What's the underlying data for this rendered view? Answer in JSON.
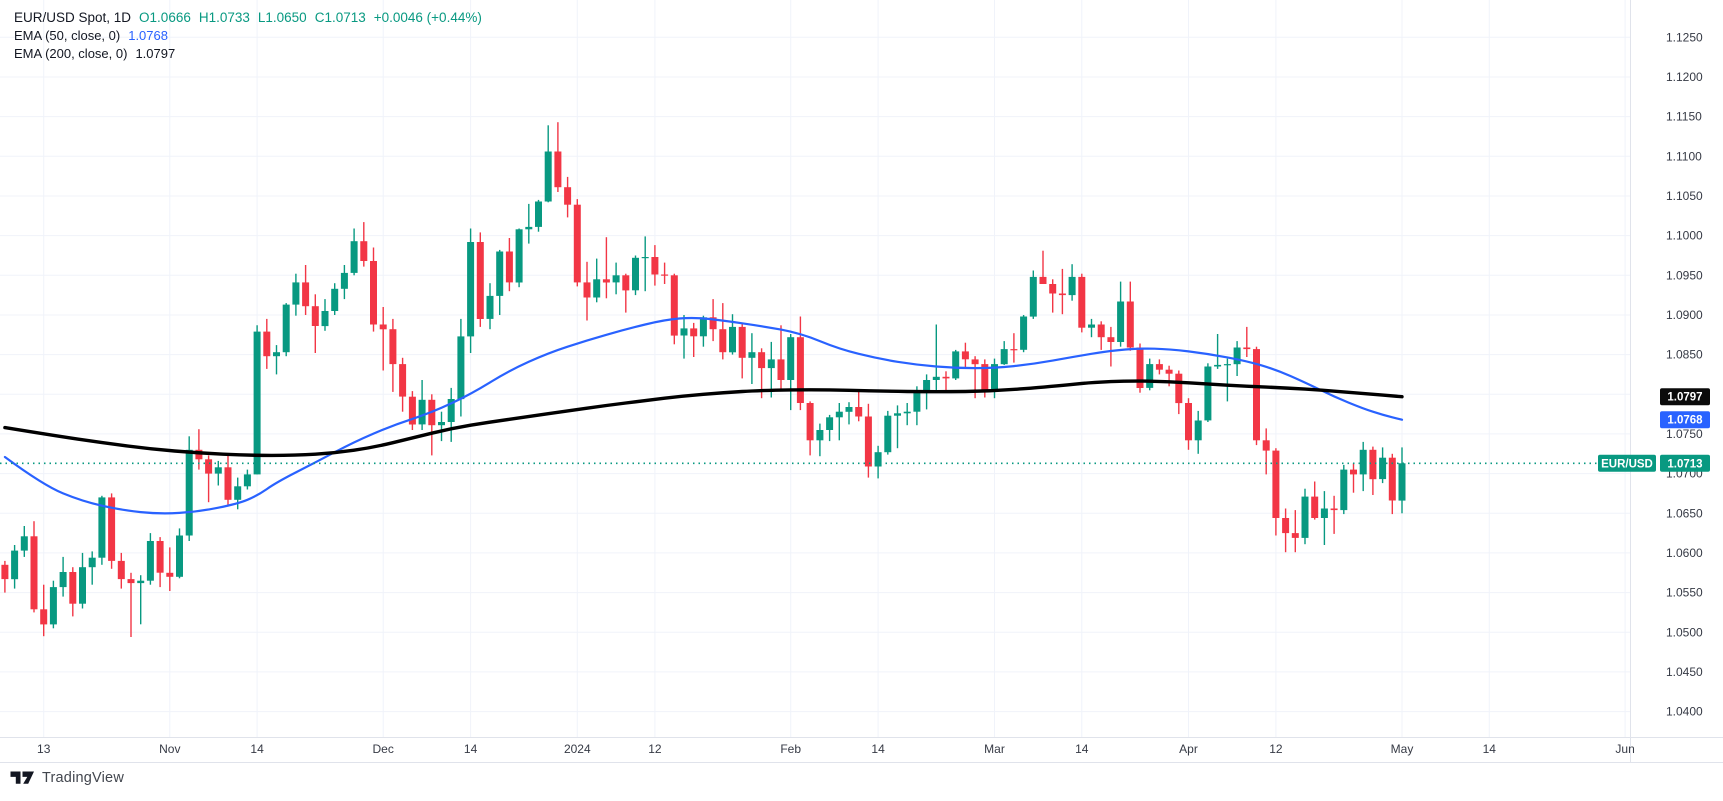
{
  "legend": {
    "symbol_title": "EUR/USD Spot, 1D",
    "ohlc": {
      "open": "O1.0666",
      "high": "H1.0733",
      "low": "L1.0650",
      "close": "C1.0713",
      "change": "+0.0046 (+0.44%)"
    },
    "ema50": {
      "label": "EMA (50, close, 0)",
      "value": "1.0768"
    },
    "ema200": {
      "label": "EMA (200, close, 0)",
      "value": "1.0797"
    }
  },
  "footer": {
    "brand": "TradingView"
  },
  "colors": {
    "up": "#089981",
    "down": "#F23645",
    "grid": "#F0F3FA",
    "border": "#E0E3EB",
    "axis_text": "#363A45",
    "ema50": "#2962FF",
    "ema200": "#000000",
    "last_line": "#089981",
    "badge_black": "#0B0B0B",
    "badge_blue": "#2962FF",
    "badge_green": "#089981",
    "badge_text": "#FFFFFF"
  },
  "chart_data": {
    "type": "candlestick",
    "symbol": "EUR/USD Spot",
    "interval": "1D",
    "ohlc_legend": {
      "open": 1.0666,
      "high": 1.0733,
      "low": 1.065,
      "close": 1.0713,
      "change": "+0.0046 (+0.44%)"
    },
    "y_axis": {
      "min": 1.0368,
      "max": 1.1297,
      "tick_min": 1.04,
      "tick_max": 1.125,
      "tick_step": 0.005,
      "hidden_labels": [
        "1.0800"
      ]
    },
    "x_axis": {
      "total_slots": 168,
      "ticks": [
        {
          "slot": 4,
          "label": "13"
        },
        {
          "slot": 17,
          "label": "Nov"
        },
        {
          "slot": 26,
          "label": "14"
        },
        {
          "slot": 39,
          "label": "Dec"
        },
        {
          "slot": 48,
          "label": "14"
        },
        {
          "slot": 59,
          "label": "2024"
        },
        {
          "slot": 67,
          "label": "12"
        },
        {
          "slot": 81,
          "label": "Feb"
        },
        {
          "slot": 90,
          "label": "14"
        },
        {
          "slot": 102,
          "label": "Mar"
        },
        {
          "slot": 111,
          "label": "14"
        },
        {
          "slot": 122,
          "label": "Apr"
        },
        {
          "slot": 131,
          "label": "12"
        },
        {
          "slot": 144,
          "label": "May"
        },
        {
          "slot": 153,
          "label": "14"
        },
        {
          "slot": 167,
          "label": "Jun"
        }
      ]
    },
    "candles": [
      [
        1.0585,
        1.059,
        1.055,
        1.0567
      ],
      [
        1.0567,
        1.061,
        1.0555,
        1.0603
      ],
      [
        1.0603,
        1.0634,
        1.0595,
        1.0621
      ],
      [
        1.0621,
        1.064,
        1.0525,
        1.0529
      ],
      [
        1.0529,
        1.056,
        1.0495,
        1.051
      ],
      [
        1.051,
        1.0565,
        1.0505,
        1.0557
      ],
      [
        1.0557,
        1.0595,
        1.0545,
        1.0576
      ],
      [
        1.0576,
        1.0582,
        1.052,
        1.0536
      ],
      [
        1.0536,
        1.06,
        1.053,
        1.0582
      ],
      [
        1.0582,
        1.0602,
        1.056,
        1.0594
      ],
      [
        1.0594,
        1.0672,
        1.0585,
        1.067
      ],
      [
        1.067,
        1.0675,
        1.058,
        1.059
      ],
      [
        1.059,
        1.06,
        1.0555,
        1.0567
      ],
      [
        1.0567,
        1.0575,
        1.0494,
        1.0562
      ],
      [
        1.0562,
        1.0572,
        1.051,
        1.0565
      ],
      [
        1.0565,
        1.0625,
        1.056,
        1.0615
      ],
      [
        1.0615,
        1.062,
        1.0557,
        1.0575
      ],
      [
        1.0575,
        1.0607,
        1.0552,
        1.057
      ],
      [
        1.057,
        1.0631,
        1.0568,
        1.0622
      ],
      [
        1.0622,
        1.0747,
        1.0615,
        1.073
      ],
      [
        1.073,
        1.0756,
        1.0705,
        1.0718
      ],
      [
        1.0718,
        1.0723,
        1.0664,
        1.07
      ],
      [
        1.07,
        1.0716,
        1.0685,
        1.0708
      ],
      [
        1.0708,
        1.0724,
        1.0659,
        1.0667
      ],
      [
        1.0667,
        1.0695,
        1.0655,
        1.0684
      ],
      [
        1.0684,
        1.0705,
        1.068,
        1.0699
      ],
      [
        1.0699,
        1.0887,
        1.0699,
        1.0879
      ],
      [
        1.0879,
        1.0895,
        1.0832,
        1.0848
      ],
      [
        1.0848,
        1.0862,
        1.0825,
        1.0853
      ],
      [
        1.0853,
        1.0915,
        1.0848,
        1.0913
      ],
      [
        1.0913,
        1.0952,
        1.0899,
        1.0941
      ],
      [
        1.0941,
        1.0963,
        1.09,
        1.0911
      ],
      [
        1.0911,
        1.0926,
        1.0852,
        1.0886
      ],
      [
        1.0886,
        1.092,
        1.088,
        1.0905
      ],
      [
        1.0905,
        1.094,
        1.09,
        1.0933
      ],
      [
        1.0933,
        1.0963,
        1.092,
        1.0953
      ],
      [
        1.0953,
        1.1009,
        1.095,
        1.0993
      ],
      [
        1.0993,
        1.1017,
        1.0961,
        1.0968
      ],
      [
        1.0968,
        1.0985,
        1.0879,
        1.0888
      ],
      [
        1.0888,
        1.091,
        1.083,
        1.0882
      ],
      [
        1.0882,
        1.0895,
        1.0803,
        1.0838
      ],
      [
        1.0838,
        1.0846,
        1.0778,
        1.0797
      ],
      [
        1.0797,
        1.0804,
        1.0755,
        1.0762
      ],
      [
        1.0762,
        1.0818,
        1.0755,
        1.0793
      ],
      [
        1.0793,
        1.08,
        1.0723,
        1.0761
      ],
      [
        1.0761,
        1.0778,
        1.0741,
        1.0765
      ],
      [
        1.0765,
        1.0808,
        1.074,
        1.0794
      ],
      [
        1.0794,
        1.0895,
        1.0772,
        1.0873
      ],
      [
        1.0873,
        1.1009,
        1.0852,
        1.0992
      ],
      [
        1.0992,
        1.1004,
        1.0885,
        1.0895
      ],
      [
        1.0895,
        1.094,
        1.0882,
        1.0924
      ],
      [
        1.0924,
        1.0982,
        1.09,
        1.098
      ],
      [
        1.098,
        1.0997,
        1.093,
        1.0941
      ],
      [
        1.0941,
        1.1009,
        1.0935,
        1.1008
      ],
      [
        1.1008,
        1.104,
        1.099,
        1.1011
      ],
      [
        1.1011,
        1.1045,
        1.1005,
        1.1043
      ],
      [
        1.1043,
        1.1139,
        1.1042,
        1.1106
      ],
      [
        1.1106,
        1.1143,
        1.1055,
        1.1061
      ],
      [
        1.1061,
        1.1074,
        1.1023,
        1.1039
      ],
      [
        1.1039,
        1.1046,
        1.0936,
        1.0941
      ],
      [
        1.0941,
        1.0967,
        1.0893,
        1.0922
      ],
      [
        1.0922,
        1.0971,
        1.0916,
        1.0945
      ],
      [
        1.0945,
        1.0998,
        1.0921,
        1.0941
      ],
      [
        1.0941,
        1.0966,
        1.0926,
        1.095
      ],
      [
        1.095,
        1.0952,
        1.0903,
        1.0931
      ],
      [
        1.0931,
        1.0975,
        1.0925,
        1.0972
      ],
      [
        1.0972,
        1.0999,
        1.093,
        1.0973
      ],
      [
        1.0973,
        1.0988,
        1.0937,
        1.0951
      ],
      [
        1.0951,
        1.0966,
        1.0939,
        1.095
      ],
      [
        1.095,
        1.0952,
        1.0863,
        1.0874
      ],
      [
        1.0874,
        1.09,
        1.0845,
        1.0883
      ],
      [
        1.0883,
        1.089,
        1.0847,
        1.0873
      ],
      [
        1.0873,
        1.0899,
        1.086,
        1.0897
      ],
      [
        1.0897,
        1.092,
        1.0867,
        1.0882
      ],
      [
        1.0882,
        1.0915,
        1.0844,
        1.0853
      ],
      [
        1.0853,
        1.0901,
        1.085,
        1.0885
      ],
      [
        1.0885,
        1.089,
        1.082,
        1.0846
      ],
      [
        1.0846,
        1.0877,
        1.0813,
        1.0853
      ],
      [
        1.0853,
        1.0858,
        1.0795,
        1.0833
      ],
      [
        1.0833,
        1.0866,
        1.0796,
        1.0844
      ],
      [
        1.0844,
        1.0887,
        1.0806,
        1.0818
      ],
      [
        1.0818,
        1.0876,
        1.078,
        1.0872
      ],
      [
        1.0872,
        1.0898,
        1.078,
        1.0789
      ],
      [
        1.0789,
        1.0791,
        1.0723,
        1.0742
      ],
      [
        1.0742,
        1.0763,
        1.0722,
        1.0755
      ],
      [
        1.0755,
        1.0774,
        1.0741,
        1.0771
      ],
      [
        1.0771,
        1.0789,
        1.0742,
        1.0778
      ],
      [
        1.0778,
        1.079,
        1.0762,
        1.0784
      ],
      [
        1.0784,
        1.0805,
        1.0766,
        1.0772
      ],
      [
        1.0772,
        1.0788,
        1.0695,
        1.0709
      ],
      [
        1.0709,
        1.0735,
        1.0694,
        1.0727
      ],
      [
        1.0727,
        1.0779,
        1.0724,
        1.0773
      ],
      [
        1.0773,
        1.0786,
        1.0732,
        1.0776
      ],
      [
        1.0776,
        1.0789,
        1.0761,
        1.0778
      ],
      [
        1.0778,
        1.081,
        1.0761,
        1.0805
      ],
      [
        1.0805,
        1.0825,
        1.0781,
        1.0818
      ],
      [
        1.0818,
        1.0888,
        1.0802,
        1.0822
      ],
      [
        1.0822,
        1.0829,
        1.0802,
        1.082
      ],
      [
        1.082,
        1.0856,
        1.0818,
        1.0854
      ],
      [
        1.0854,
        1.0865,
        1.0833,
        1.0844
      ],
      [
        1.0844,
        1.0848,
        1.0795,
        1.0838
      ],
      [
        1.0838,
        1.0844,
        1.0796,
        1.0805
      ],
      [
        1.0805,
        1.0845,
        1.0795,
        1.0838
      ],
      [
        1.0838,
        1.0867,
        1.0837,
        1.0857
      ],
      [
        1.0857,
        1.0877,
        1.084,
        1.0856
      ],
      [
        1.0856,
        1.09,
        1.0853,
        1.0898
      ],
      [
        1.0898,
        1.0956,
        1.0895,
        1.0948
      ],
      [
        1.0948,
        1.0981,
        1.094,
        1.0939
      ],
      [
        1.0939,
        1.0945,
        1.0903,
        1.0927
      ],
      [
        1.0927,
        1.0958,
        1.0901,
        1.0925
      ],
      [
        1.0925,
        1.0964,
        1.0918,
        1.0948
      ],
      [
        1.0948,
        1.0952,
        1.0878,
        1.0884
      ],
      [
        1.0884,
        1.0895,
        1.0872,
        1.0888
      ],
      [
        1.0888,
        1.0892,
        1.0856,
        1.0872
      ],
      [
        1.0872,
        1.0885,
        1.0835,
        1.0866
      ],
      [
        1.0866,
        1.0942,
        1.086,
        1.0917
      ],
      [
        1.0917,
        1.0942,
        1.0855,
        1.0859
      ],
      [
        1.0859,
        1.0864,
        1.0802,
        1.0808
      ],
      [
        1.0808,
        1.0845,
        1.0805,
        1.0838
      ],
      [
        1.0838,
        1.0844,
        1.0825,
        1.0831
      ],
      [
        1.0831,
        1.0836,
        1.081,
        1.0826
      ],
      [
        1.0826,
        1.083,
        1.0775,
        1.0789
      ],
      [
        1.0789,
        1.0795,
        1.073,
        1.0742
      ],
      [
        1.0742,
        1.0779,
        1.0725,
        1.0767
      ],
      [
        1.0767,
        1.0839,
        1.0765,
        1.0835
      ],
      [
        1.0835,
        1.0876,
        1.0832,
        1.0837
      ],
      [
        1.0837,
        1.0845,
        1.0791,
        1.0838
      ],
      [
        1.0838,
        1.0867,
        1.0823,
        1.0859
      ],
      [
        1.0859,
        1.0885,
        1.0847,
        1.0857
      ],
      [
        1.0857,
        1.086,
        1.0736,
        1.0742
      ],
      [
        1.0742,
        1.0757,
        1.0699,
        1.0729
      ],
      [
        1.0729,
        1.0732,
        1.0622,
        1.0644
      ],
      [
        1.0644,
        1.0656,
        1.0601,
        1.0625
      ],
      [
        1.0625,
        1.0654,
        1.0601,
        1.0619
      ],
      [
        1.0619,
        1.0681,
        1.0611,
        1.0671
      ],
      [
        1.0671,
        1.069,
        1.0642,
        1.0644
      ],
      [
        1.0644,
        1.0678,
        1.061,
        1.0656
      ],
      [
        1.0656,
        1.0672,
        1.0624,
        1.0654
      ],
      [
        1.0654,
        1.0711,
        1.0649,
        1.0705
      ],
      [
        1.0705,
        1.0713,
        1.0676,
        1.0699
      ],
      [
        1.0699,
        1.074,
        1.0678,
        1.073
      ],
      [
        1.073,
        1.0734,
        1.0673,
        1.0693
      ],
      [
        1.0693,
        1.0733,
        1.0688,
        1.072
      ],
      [
        1.072,
        1.0725,
        1.0649,
        1.0666
      ],
      [
        1.0666,
        1.0733,
        1.065,
        1.0713
      ]
    ],
    "overlays": [
      {
        "name": "EMA 50",
        "color": "#2962FF",
        "width": 2.2,
        "points": [
          [
            0,
            1.0721
          ],
          [
            4,
            1.0685
          ],
          [
            8,
            1.0665
          ],
          [
            12,
            1.0654
          ],
          [
            16,
            1.0649
          ],
          [
            20,
            1.0652
          ],
          [
            24,
            1.0662
          ],
          [
            26,
            1.0672
          ],
          [
            28,
            1.0689
          ],
          [
            32,
            1.0714
          ],
          [
            36,
            1.074
          ],
          [
            40,
            1.0761
          ],
          [
            44,
            1.0777
          ],
          [
            48,
            1.08
          ],
          [
            52,
            1.083
          ],
          [
            56,
            1.0852
          ],
          [
            60,
            1.0868
          ],
          [
            64,
            1.0882
          ],
          [
            68,
            1.0894
          ],
          [
            71,
            1.0897
          ],
          [
            74,
            1.0893
          ],
          [
            78,
            1.0886
          ],
          [
            82,
            1.0877
          ],
          [
            86,
            1.0857
          ],
          [
            90,
            1.0845
          ],
          [
            94,
            1.0837
          ],
          [
            98,
            1.0833
          ],
          [
            102,
            1.0833
          ],
          [
            106,
            1.0838
          ],
          [
            110,
            1.0847
          ],
          [
            114,
            1.0855
          ],
          [
            117,
            1.0858
          ],
          [
            120,
            1.0857
          ],
          [
            124,
            1.0851
          ],
          [
            128,
            1.0842
          ],
          [
            131,
            1.0831
          ],
          [
            134,
            1.0815
          ],
          [
            137,
            1.0797
          ],
          [
            140,
            1.0782
          ],
          [
            142,
            1.0774
          ],
          [
            144,
            1.0768
          ]
        ]
      },
      {
        "name": "EMA 200",
        "color": "#000000",
        "width": 3.4,
        "points": [
          [
            0,
            1.0758
          ],
          [
            5,
            1.0748
          ],
          [
            10,
            1.0739
          ],
          [
            15,
            1.0731
          ],
          [
            20,
            1.0726
          ],
          [
            25,
            1.0723
          ],
          [
            30,
            1.0723
          ],
          [
            34,
            1.0726
          ],
          [
            38,
            1.0733
          ],
          [
            42,
            1.0745
          ],
          [
            46,
            1.0757
          ],
          [
            50,
            1.0765
          ],
          [
            54,
            1.0772
          ],
          [
            58,
            1.0779
          ],
          [
            62,
            1.0786
          ],
          [
            66,
            1.0792
          ],
          [
            70,
            1.0798
          ],
          [
            74,
            1.0802
          ],
          [
            78,
            1.0805
          ],
          [
            84,
            1.0806
          ],
          [
            90,
            1.0804
          ],
          [
            96,
            1.0803
          ],
          [
            102,
            1.0804
          ],
          [
            108,
            1.081
          ],
          [
            112,
            1.0815
          ],
          [
            116,
            1.0817
          ],
          [
            120,
            1.0816
          ],
          [
            124,
            1.0813
          ],
          [
            128,
            1.081
          ],
          [
            132,
            1.0808
          ],
          [
            136,
            1.0805
          ],
          [
            140,
            1.0801
          ],
          [
            144,
            1.0797
          ]
        ]
      }
    ],
    "last_price": {
      "price": 1.0713,
      "label": "1.0713",
      "symbol_label": "EUR/USD"
    },
    "price_badges": [
      {
        "label": "1.0797",
        "price": 1.0797,
        "bg": "#0B0B0B",
        "name": "ema200-price-badge"
      },
      {
        "label": "1.0768",
        "price": 1.0768,
        "bg": "#2962FF",
        "name": "ema50-price-badge"
      }
    ]
  }
}
